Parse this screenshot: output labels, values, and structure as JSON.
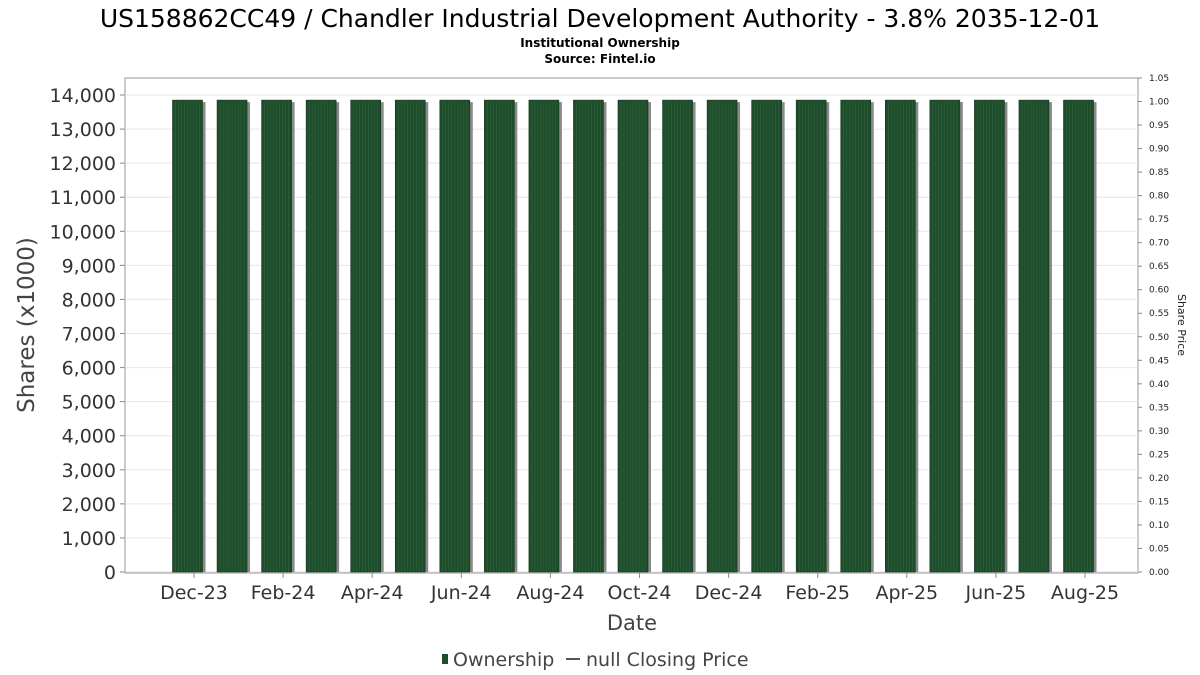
{
  "chart_data": {
    "type": "bar",
    "title": "US158862CC49 / Chandler Industrial Development Authority - 3.8% 2035-12-01",
    "subtitle_lines": [
      "Institutional Ownership",
      "Source: Fintel.io"
    ],
    "xlabel": "Date",
    "ylabel": "Shares (x1000)",
    "y2label": "Share Price",
    "ylim": [
      0,
      14000
    ],
    "y2lim": [
      0,
      1.05
    ],
    "y_ticks": [
      "0",
      "1,000",
      "2,000",
      "3,000",
      "4,000",
      "5,000",
      "6,000",
      "7,000",
      "8,000",
      "9,000",
      "10,000",
      "11,000",
      "12,000",
      "13,000",
      "14,000"
    ],
    "y2_ticks": [
      "0.00",
      "0.05",
      "0.10",
      "0.15",
      "0.20",
      "0.25",
      "0.30",
      "0.35",
      "0.40",
      "0.45",
      "0.50",
      "0.55",
      "0.60",
      "0.65",
      "0.70",
      "0.75",
      "0.80",
      "0.85",
      "0.90",
      "0.95",
      "1.00",
      "1.05"
    ],
    "x_tick_labels": [
      "Dec-23",
      "Feb-24",
      "Apr-24",
      "Jun-24",
      "Aug-24",
      "Oct-24",
      "Dec-24",
      "Feb-25",
      "Apr-25",
      "Jun-25",
      "Aug-25"
    ],
    "series": [
      {
        "name": "Ownership",
        "color": "#1e4d2b",
        "values": [
          13850,
          13850,
          13850,
          13850,
          13850,
          13850,
          13850,
          13850,
          13850,
          13850,
          13850,
          13850,
          13850,
          13850,
          13850,
          13850,
          13850,
          13850,
          13850,
          13850,
          13850
        ]
      }
    ],
    "legend": [
      {
        "label": "Ownership",
        "marker": "bar",
        "color": "#1e4d2b"
      },
      {
        "label": "null Closing Price",
        "marker": "line",
        "color": "#555555"
      }
    ],
    "legend_position": "bottom",
    "grid": true
  }
}
